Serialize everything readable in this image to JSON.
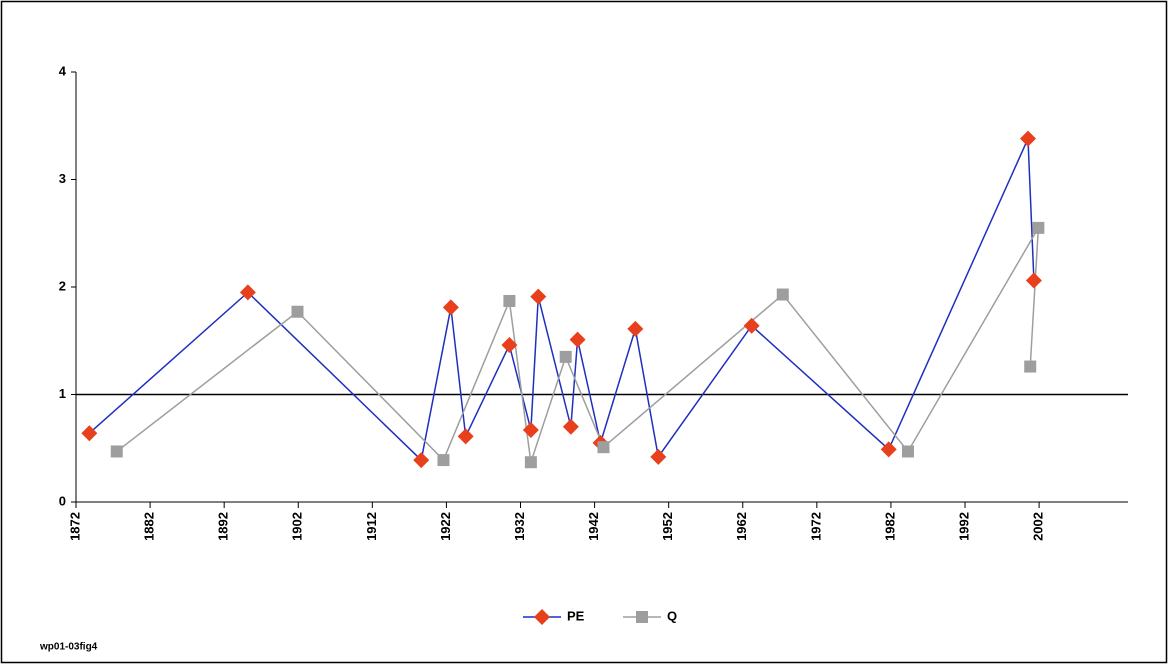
{
  "chart_data": {
    "type": "line",
    "footnote": "wp01-03fig4",
    "xlim": [
      1872,
      2014
    ],
    "xticks": [
      1872,
      1882,
      1892,
      1902,
      1912,
      1922,
      1932,
      1942,
      1952,
      1962,
      1972,
      1982,
      1992,
      2002
    ],
    "ylim": [
      0,
      4
    ],
    "yticks": [
      0,
      1,
      2,
      3,
      4
    ],
    "reference_line": 1,
    "series": [
      {
        "name": "PE",
        "color": "#1f2fbf",
        "marker": "diamond",
        "marker_color": "#e8401c",
        "x": [
          1873.8,
          1895.2,
          1918.6,
          1922.6,
          1924.6,
          1930.5,
          1933.4,
          1934.4,
          1938.8,
          1939.7,
          1942.8,
          1947.5,
          1950.6,
          1963.2,
          1981.7,
          2000.5,
          2001.3
        ],
        "values": [
          0.64,
          1.95,
          0.39,
          1.81,
          0.61,
          1.46,
          0.67,
          1.91,
          0.7,
          1.51,
          0.55,
          1.61,
          0.42,
          1.64,
          0.49,
          3.38,
          2.06
        ]
      },
      {
        "name": "Q",
        "color": "#9e9e9e",
        "marker": "square",
        "marker_color": "#9e9e9e",
        "x": [
          1877.5,
          1901.9,
          1921.6,
          1930.5,
          1933.4,
          1938.1,
          1943.2,
          1967.4,
          1984.3,
          2001.9,
          2000.8
        ],
        "values": [
          0.47,
          1.77,
          0.39,
          1.87,
          0.37,
          1.35,
          0.51,
          1.93,
          0.47,
          2.55,
          1.26
        ]
      }
    ]
  }
}
